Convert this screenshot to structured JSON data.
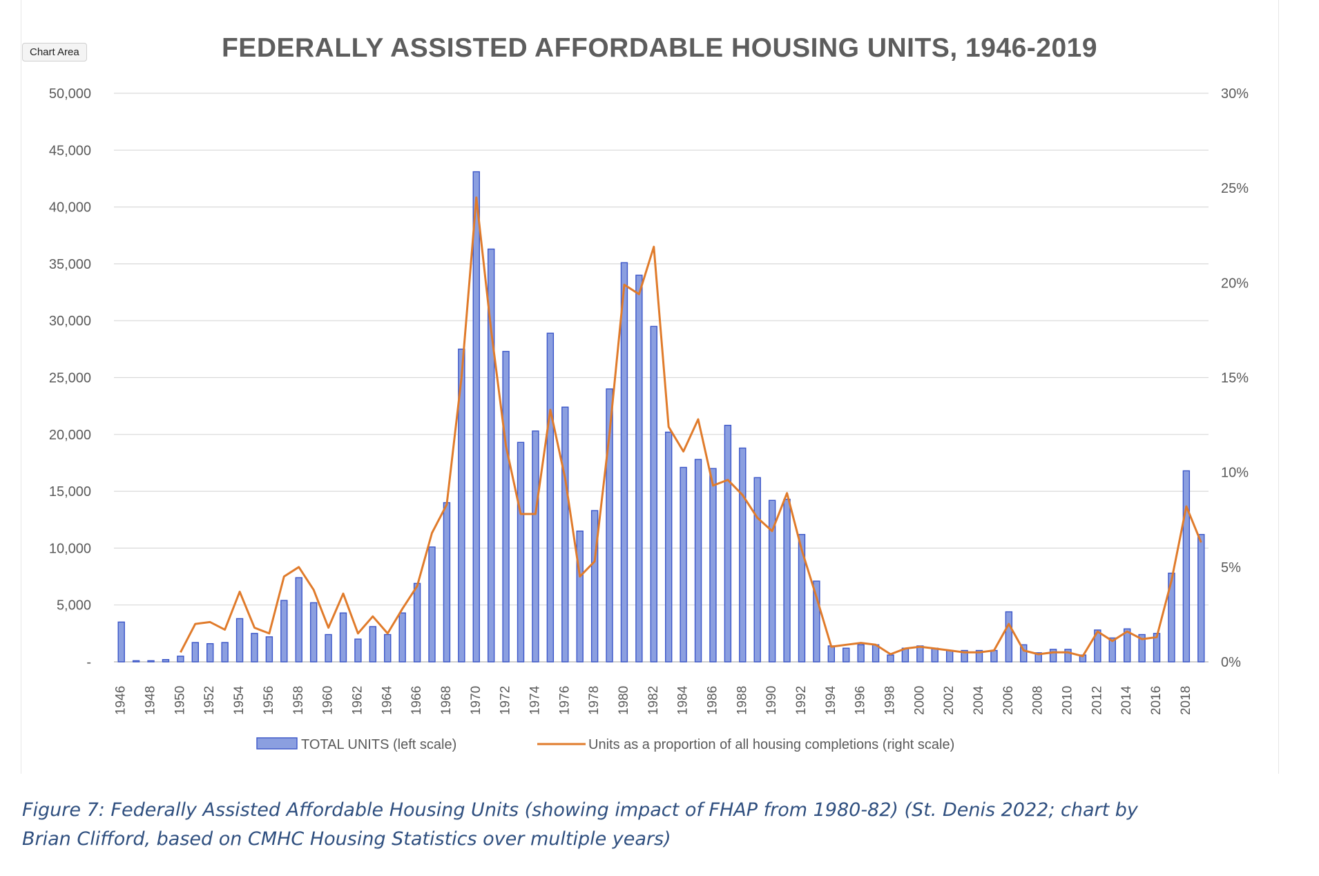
{
  "chart_area_label": "Chart Area",
  "caption": {
    "line1": "Figure 7: Federally Assisted Affordable Housing Units (showing impact of FHAP from 1980-82) (St. Denis 2022; chart by",
    "line2": "Brian Clifford, based on CMHC Housing Statistics over multiple years)"
  },
  "colors": {
    "bar_fill": "#8b9fe0",
    "bar_stroke": "#3a55c8",
    "line": "#e07b2b",
    "grid": "#d9d9d9",
    "axis_text": "#595959",
    "title": "#5d5d5d"
  },
  "chart_data": {
    "type": "bar",
    "title": "FEDERALLY ASSISTED AFFORDABLE HOUSING UNITS, 1946-2019",
    "x": [
      1946,
      1947,
      1948,
      1949,
      1950,
      1951,
      1952,
      1953,
      1954,
      1955,
      1956,
      1957,
      1958,
      1959,
      1960,
      1961,
      1962,
      1963,
      1964,
      1965,
      1966,
      1967,
      1968,
      1969,
      1970,
      1971,
      1972,
      1973,
      1974,
      1975,
      1976,
      1977,
      1978,
      1979,
      1980,
      1981,
      1982,
      1983,
      1984,
      1985,
      1986,
      1987,
      1988,
      1989,
      1990,
      1991,
      1992,
      1993,
      1994,
      1995,
      1996,
      1997,
      1998,
      1999,
      2000,
      2001,
      2002,
      2003,
      2004,
      2005,
      2006,
      2007,
      2008,
      2009,
      2010,
      2011,
      2012,
      2013,
      2014,
      2015,
      2016,
      2017,
      2018,
      2019
    ],
    "x_tick_labels": [
      "1946",
      "1948",
      "1950",
      "1952",
      "1954",
      "1956",
      "1958",
      "1960",
      "1962",
      "1964",
      "1966",
      "1968",
      "1970",
      "1972",
      "1974",
      "1976",
      "1978",
      "1980",
      "1982",
      "1984",
      "1986",
      "1988",
      "1990",
      "1992",
      "1994",
      "1996",
      "1998",
      "2000",
      "2002",
      "2004",
      "2006",
      "2008",
      "2010",
      "2012",
      "2014",
      "2016",
      "2018"
    ],
    "y_left_ticks": [
      "-",
      "5,000",
      "10,000",
      "15,000",
      "20,000",
      "25,000",
      "30,000",
      "35,000",
      "40,000",
      "45,000",
      "50,000"
    ],
    "y_right_ticks": [
      "0%",
      "5%",
      "10%",
      "15%",
      "20%",
      "25%",
      "30%"
    ],
    "ylim_left": [
      0,
      50000
    ],
    "ylim_right": [
      0,
      30
    ],
    "grid": true,
    "legend_position": "bottom",
    "series": [
      {
        "name": "TOTAL UNITS (left scale)",
        "type": "bar",
        "axis": "left",
        "values": [
          3500,
          100,
          100,
          200,
          500,
          1700,
          1600,
          1700,
          3800,
          2500,
          2200,
          5400,
          7400,
          5200,
          2400,
          4300,
          2000,
          3100,
          2400,
          4300,
          6900,
          10100,
          14000,
          27500,
          43100,
          36300,
          27300,
          19300,
          20300,
          28900,
          22400,
          11500,
          13300,
          24000,
          35100,
          34000,
          29500,
          20200,
          17100,
          17800,
          17000,
          20800,
          18800,
          16200,
          14200,
          14300,
          11200,
          7100,
          1400,
          1200,
          1500,
          1500,
          600,
          1200,
          1400,
          1200,
          1000,
          1000,
          1000,
          1000,
          4400,
          1500,
          800,
          1100,
          1100,
          600,
          2800,
          2100,
          2900,
          2400,
          2500,
          7800,
          16800,
          11200
        ]
      },
      {
        "name": "Units as a proportion of all housing completions (right scale)",
        "type": "line",
        "axis": "right",
        "values": [
          null,
          null,
          null,
          null,
          0.5,
          2.0,
          2.1,
          1.7,
          3.7,
          1.8,
          1.5,
          4.5,
          5.0,
          3.8,
          1.8,
          3.6,
          1.5,
          2.4,
          1.5,
          2.8,
          4.0,
          6.8,
          8.3,
          15.0,
          24.5,
          17.5,
          11.4,
          7.8,
          7.8,
          13.3,
          9.7,
          4.5,
          5.3,
          12.0,
          19.9,
          19.4,
          21.9,
          12.4,
          11.1,
          12.8,
          9.3,
          9.6,
          8.8,
          7.6,
          6.9,
          8.9,
          5.9,
          3.4,
          0.8,
          0.9,
          1.0,
          0.9,
          0.4,
          0.7,
          0.8,
          0.7,
          0.6,
          0.5,
          0.5,
          0.6,
          2.0,
          0.6,
          0.4,
          0.5,
          0.5,
          0.3,
          1.6,
          1.1,
          1.6,
          1.2,
          1.3,
          4.3,
          8.2,
          6.3
        ]
      }
    ]
  }
}
